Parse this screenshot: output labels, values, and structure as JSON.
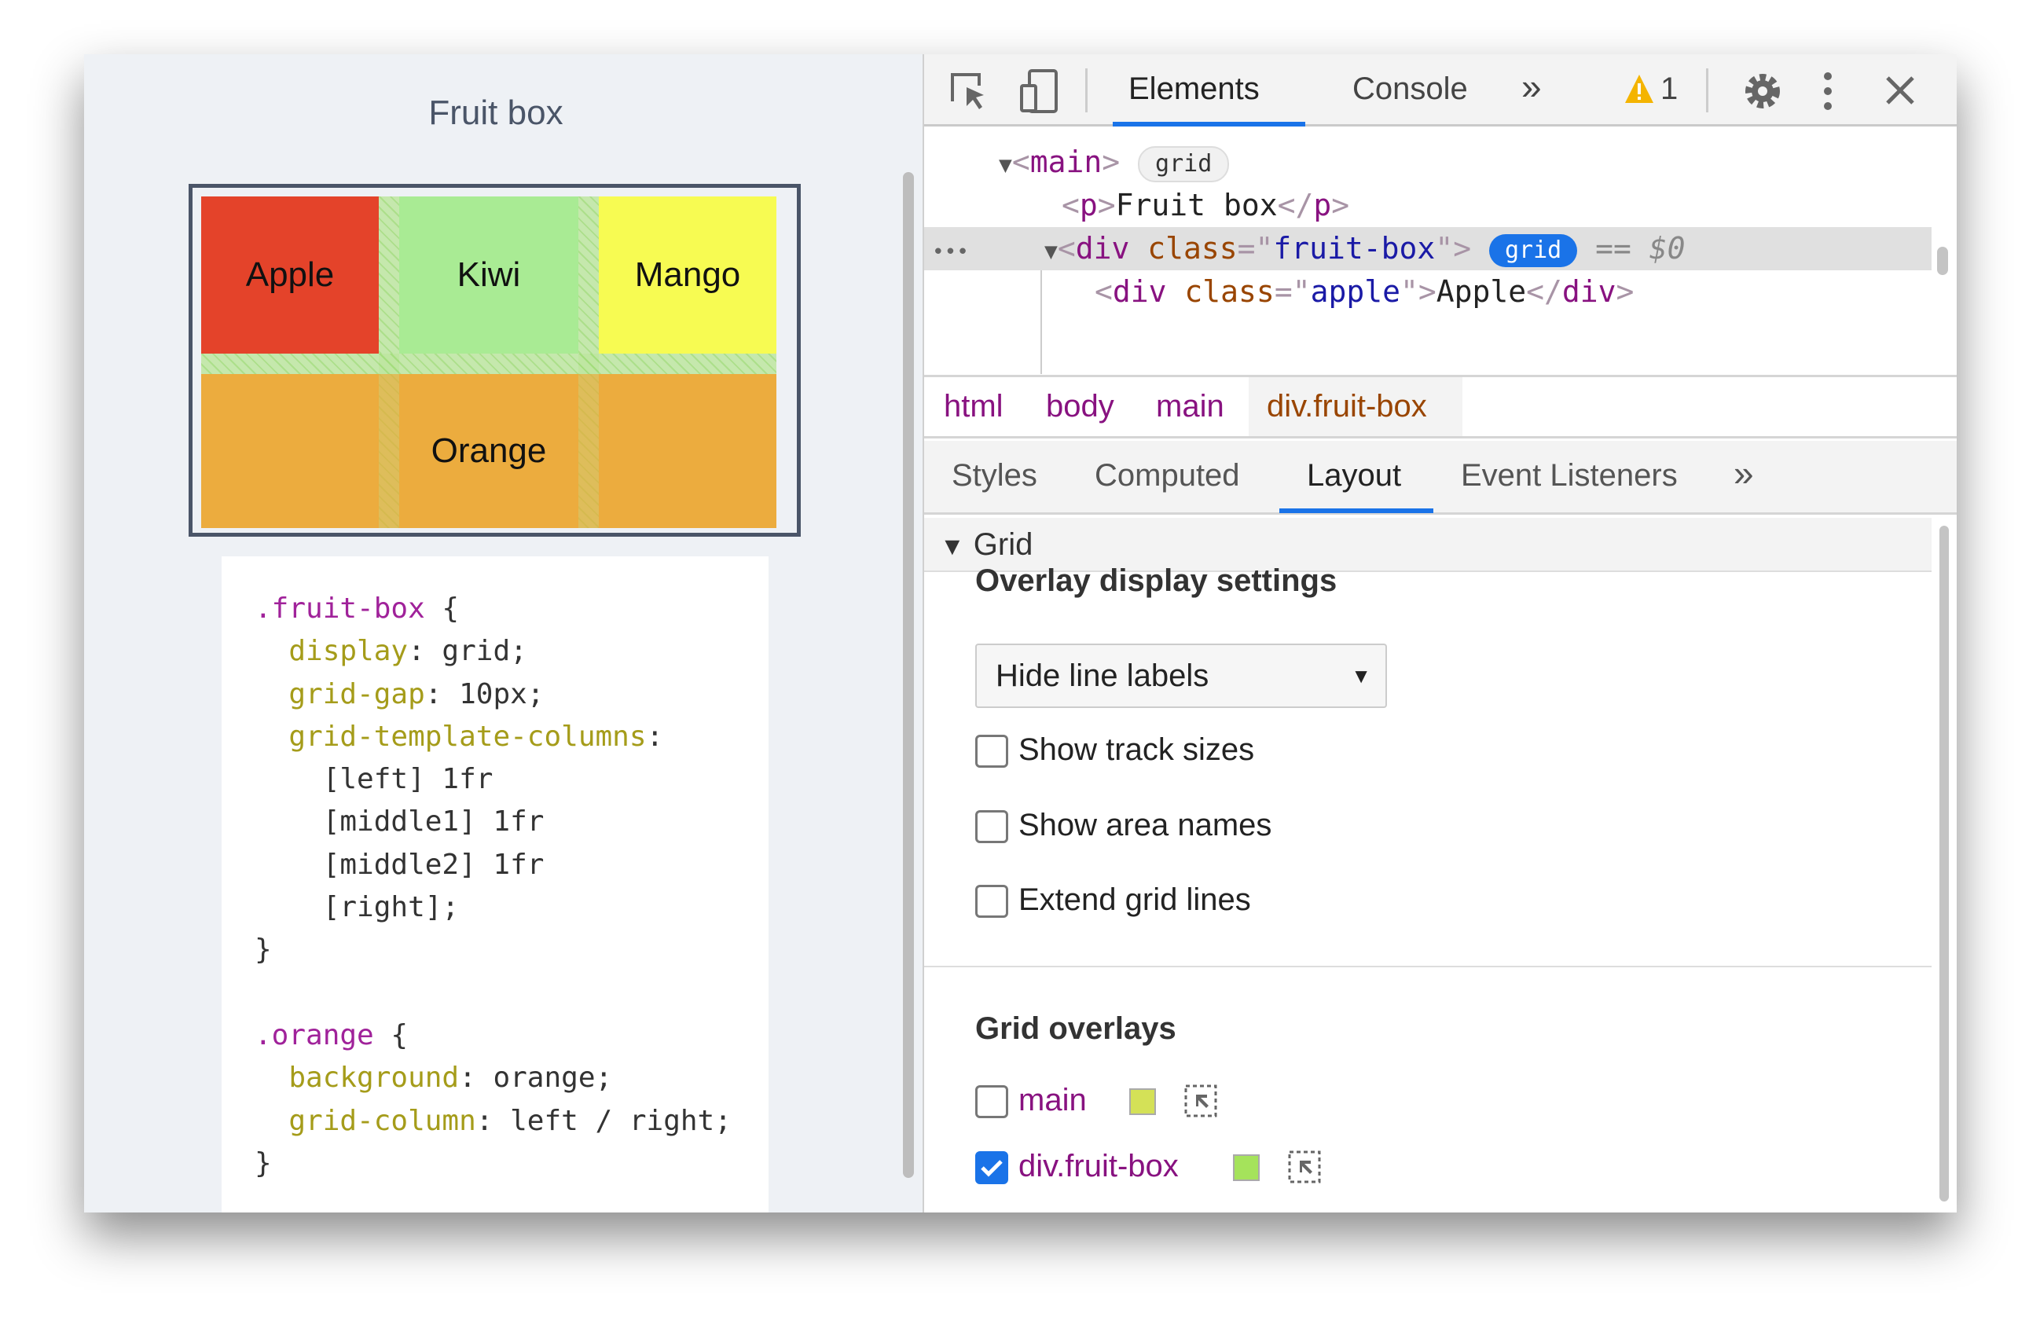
{
  "page": {
    "title": "Fruit box",
    "cells": {
      "apple": "Apple",
      "kiwi": "Kiwi",
      "mango": "Mango",
      "orange": "Orange"
    },
    "colors": {
      "apple": "#e4432a",
      "kiwi": "#a9eb94",
      "mango": "#f7fb52",
      "orange": "#ecac3e"
    },
    "code": [
      [
        {
          "c": "sel",
          "t": ".fruit-box"
        },
        {
          "c": "",
          "t": " {"
        }
      ],
      [
        {
          "c": "",
          "t": "  "
        },
        {
          "c": "prop",
          "t": "display"
        },
        {
          "c": "",
          "t": ": grid;"
        }
      ],
      [
        {
          "c": "",
          "t": "  "
        },
        {
          "c": "prop",
          "t": "grid-gap"
        },
        {
          "c": "",
          "t": ": 10px;"
        }
      ],
      [
        {
          "c": "",
          "t": "  "
        },
        {
          "c": "prop",
          "t": "grid-template-columns"
        },
        {
          "c": "",
          "t": ":"
        }
      ],
      [
        {
          "c": "",
          "t": "    [left] 1fr"
        }
      ],
      [
        {
          "c": "",
          "t": "    [middle1] 1fr"
        }
      ],
      [
        {
          "c": "",
          "t": "    [middle2] 1fr"
        }
      ],
      [
        {
          "c": "",
          "t": "    [right];"
        }
      ],
      [
        {
          "c": "",
          "t": "}"
        }
      ],
      [
        {
          "c": "",
          "t": ""
        }
      ],
      [
        {
          "c": "sel",
          "t": ".orange"
        },
        {
          "c": "",
          "t": " {"
        }
      ],
      [
        {
          "c": "",
          "t": "  "
        },
        {
          "c": "prop",
          "t": "background"
        },
        {
          "c": "",
          "t": ": orange;"
        }
      ],
      [
        {
          "c": "",
          "t": "  "
        },
        {
          "c": "prop",
          "t": "grid-column"
        },
        {
          "c": "",
          "t": ": left / right;"
        }
      ],
      [
        {
          "c": "",
          "t": "}"
        }
      ]
    ]
  },
  "devtools": {
    "tabs": {
      "elements": "Elements",
      "console": "Console",
      "more": "»"
    },
    "warnings": "1",
    "tree": {
      "main_tag": "main",
      "grid_badge": "grid",
      "p_text": "Fruit box",
      "p_tag": "p",
      "div_tag": "div",
      "class_attr": "class",
      "fruit_box": "fruit-box",
      "selected_marker": "== $0",
      "apple_class": "apple",
      "apple_text": "Apple",
      "ellipsis": "•••"
    },
    "breadcrumbs": [
      "html",
      "body",
      "main",
      "div.fruit-box"
    ],
    "panel_tabs": [
      "Styles",
      "Computed",
      "Layout",
      "Event Listeners",
      "»"
    ],
    "active_panel_tab": "Layout",
    "section": "Grid",
    "overlay_settings": {
      "heading": "Overlay display settings",
      "select_value": "Hide line labels",
      "checkboxes": [
        {
          "label": "Show track sizes",
          "checked": false
        },
        {
          "label": "Show area names",
          "checked": false
        },
        {
          "label": "Extend grid lines",
          "checked": false
        }
      ]
    },
    "grid_overlays": {
      "heading": "Grid overlays",
      "items": [
        {
          "label": "main",
          "checked": false,
          "color": "#d4e157"
        },
        {
          "label": "div.fruit-box",
          "checked": true,
          "color": "#a5e35b"
        }
      ]
    },
    "accent": "#1a73e8"
  }
}
